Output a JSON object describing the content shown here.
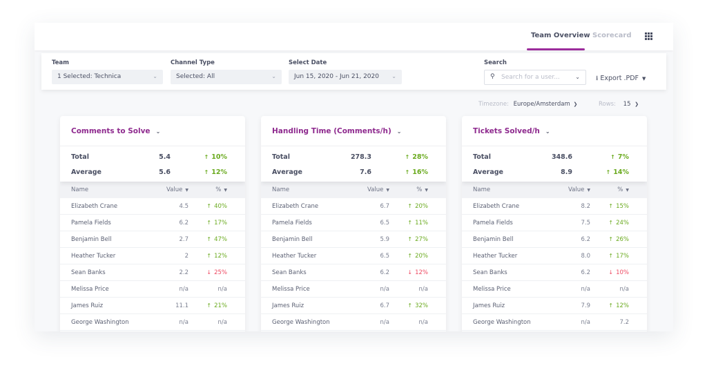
{
  "nav": {
    "tabs": [
      {
        "label": "Team Overview",
        "active": true
      },
      {
        "label": "Scorecard",
        "active": false
      }
    ],
    "accent": "#9b2c9b"
  },
  "filters": {
    "team": {
      "label": "Team",
      "value": "1 Selected: Technica"
    },
    "channel": {
      "label": "Channel Type",
      "value": "Selected: All"
    },
    "date": {
      "label": "Select Date",
      "value": "Jun 15, 2020 - Jun 21, 2020"
    },
    "search": {
      "label": "Search",
      "placeholder": "Search for a user..."
    },
    "export_label": "Export .PDF"
  },
  "options": {
    "timezone_label": "Timezone:",
    "timezone": "Europe/Amsterdam",
    "rows_label": "Rows:",
    "rows": "15"
  },
  "columns": {
    "name": "Name",
    "value": "Value",
    "pct": "%"
  },
  "cards": [
    {
      "title": "Comments to Solve",
      "total_label": "Total",
      "total": "5.4",
      "total_pct": "10%",
      "total_trend": "up",
      "avg_label": "Average",
      "avg": "5.6",
      "avg_pct": "12%",
      "avg_trend": "up",
      "rows": [
        [
          "Elizabeth Crane",
          "4.5",
          "40%",
          "up"
        ],
        [
          "Pamela Fields",
          "6.2",
          "17%",
          "up"
        ],
        [
          "Benjamin Bell",
          "2.7",
          "47%",
          "up"
        ],
        [
          "Heather Tucker",
          "2",
          "12%",
          "up"
        ],
        [
          "Sean Banks",
          "2.2",
          "25%",
          "down"
        ],
        [
          "Melissa Price",
          "n/a",
          "n/a",
          "none"
        ],
        [
          "James Ruiz",
          "11.1",
          "21%",
          "up"
        ],
        [
          "George Washington",
          "n/a",
          "n/a",
          "none"
        ]
      ]
    },
    {
      "title": "Handling Time (Comments/h)",
      "total_label": "Total",
      "total": "278.3",
      "total_pct": "28%",
      "total_trend": "up",
      "avg_label": "Average",
      "avg": "7.6",
      "avg_pct": "16%",
      "avg_trend": "up",
      "rows": [
        [
          "Elizabeth Crane",
          "6.7",
          "20%",
          "up"
        ],
        [
          "Pamela Fields",
          "6.5",
          "11%",
          "up"
        ],
        [
          "Benjamin Bell",
          "5.9",
          "27%",
          "up"
        ],
        [
          "Heather Tucker",
          "6.5",
          "20%",
          "up"
        ],
        [
          "Sean Banks",
          "6.2",
          "12%",
          "down"
        ],
        [
          "Melissa Price",
          "n/a",
          "n/a",
          "none"
        ],
        [
          "James Ruiz",
          "6.7",
          "32%",
          "up"
        ],
        [
          "George Washington",
          "n/a",
          "n/a",
          "none"
        ]
      ]
    },
    {
      "title": "Tickets Solved/h",
      "total_label": "Total",
      "total": "348.6",
      "total_pct": "7%",
      "total_trend": "up",
      "avg_label": "Average",
      "avg": "8.9",
      "avg_pct": "14%",
      "avg_trend": "up",
      "rows": [
        [
          "Elizabeth Crane",
          "8.2",
          "15%",
          "up"
        ],
        [
          "Pamela Fields",
          "7.5",
          "24%",
          "up"
        ],
        [
          "Benjamin Bell",
          "6.2",
          "26%",
          "up"
        ],
        [
          "Heather Tucker",
          "8.0",
          "17%",
          "up"
        ],
        [
          "Sean Banks",
          "6.2",
          "10%",
          "down"
        ],
        [
          "Melissa Price",
          "n/a",
          "n/a",
          "none"
        ],
        [
          "James Ruiz",
          "7.9",
          "12%",
          "up"
        ],
        [
          "George Washington",
          "n/a",
          "7.2",
          "none"
        ]
      ]
    }
  ]
}
